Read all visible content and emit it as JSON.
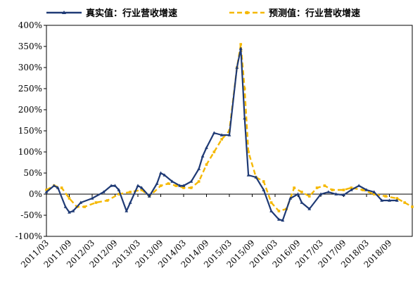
{
  "chart_data": {
    "type": "line",
    "title": "",
    "xlabel": "",
    "ylabel": "",
    "ylim": [
      -100,
      400
    ],
    "y_unit": "%",
    "yticks": [
      -100,
      -50,
      0,
      50,
      100,
      150,
      200,
      250,
      300,
      350,
      400
    ],
    "ytick_labels": [
      "-100%",
      "-50%",
      "0%",
      "50%",
      "100%",
      "150%",
      "200%",
      "250%",
      "300%",
      "350%",
      "400%"
    ],
    "x_start": "2011/03",
    "x_end": "2019/03",
    "xtick_labels": [
      "2011/03",
      "2011/09",
      "2012/03",
      "2012/09",
      "2013/03",
      "2013/09",
      "2014/03",
      "2014/09",
      "2015/03",
      "2015/09",
      "2016/03",
      "2016/09",
      "2017/03",
      "2017/09",
      "2018/03",
      "2018/09"
    ],
    "legend_position": "top",
    "grid": false,
    "series": [
      {
        "name": "真实值：行业营收增速",
        "color": "#1f3a75",
        "style": "solid-marker",
        "points": [
          [
            "2011/03",
            5
          ],
          [
            "2011/05",
            20
          ],
          [
            "2011/06",
            15
          ],
          [
            "2011/08",
            -30
          ],
          [
            "2011/09",
            -43
          ],
          [
            "2011/10",
            -40
          ],
          [
            "2011/12",
            -20
          ],
          [
            "2012/03",
            -10
          ],
          [
            "2012/06",
            5
          ],
          [
            "2012/08",
            20
          ],
          [
            "2012/09",
            20
          ],
          [
            "2012/10",
            10
          ],
          [
            "2012/12",
            -40
          ],
          [
            "2013/01",
            -20
          ],
          [
            "2013/03",
            20
          ],
          [
            "2013/04",
            15
          ],
          [
            "2013/06",
            -5
          ],
          [
            "2013/08",
            25
          ],
          [
            "2013/09",
            50
          ],
          [
            "2013/10",
            45
          ],
          [
            "2013/12",
            30
          ],
          [
            "2014/02",
            20
          ],
          [
            "2014/03",
            20
          ],
          [
            "2014/05",
            30
          ],
          [
            "2014/07",
            60
          ],
          [
            "2014/08",
            90
          ],
          [
            "2014/09",
            110
          ],
          [
            "2014/11",
            145
          ],
          [
            "2015/01",
            140
          ],
          [
            "2015/03",
            140
          ],
          [
            "2015/05",
            300
          ],
          [
            "2015/06",
            345
          ],
          [
            "2015/07",
            180
          ],
          [
            "2015/08",
            45
          ],
          [
            "2015/10",
            40
          ],
          [
            "2015/12",
            10
          ],
          [
            "2016/02",
            -40
          ],
          [
            "2016/04",
            -60
          ],
          [
            "2016/05",
            -62
          ],
          [
            "2016/07",
            -10
          ],
          [
            "2016/09",
            0
          ],
          [
            "2016/10",
            -20
          ],
          [
            "2016/12",
            -35
          ],
          [
            "2017/03",
            0
          ],
          [
            "2017/05",
            5
          ],
          [
            "2017/07",
            0
          ],
          [
            "2017/09",
            -2
          ],
          [
            "2017/11",
            10
          ],
          [
            "2018/01",
            20
          ],
          [
            "2018/03",
            10
          ],
          [
            "2018/05",
            5
          ],
          [
            "2018/07",
            -15
          ],
          [
            "2018/09",
            -15
          ],
          [
            "2018/11",
            -15
          ]
        ]
      },
      {
        "name": "预测值：行业营收增速",
        "color": "#f5b800",
        "style": "dashed-marker",
        "points": [
          [
            "2011/03",
            10
          ],
          [
            "2011/05",
            20
          ],
          [
            "2011/07",
            15
          ],
          [
            "2011/09",
            -10
          ],
          [
            "2011/11",
            -30
          ],
          [
            "2012/01",
            -30
          ],
          [
            "2012/04",
            -20
          ],
          [
            "2012/07",
            -15
          ],
          [
            "2012/10",
            0
          ],
          [
            "2013/01",
            5
          ],
          [
            "2013/04",
            10
          ],
          [
            "2013/06",
            -5
          ],
          [
            "2013/09",
            20
          ],
          [
            "2013/11",
            25
          ],
          [
            "2014/01",
            20
          ],
          [
            "2014/03",
            15
          ],
          [
            "2014/05",
            15
          ],
          [
            "2014/07",
            30
          ],
          [
            "2014/09",
            70
          ],
          [
            "2014/11",
            100
          ],
          [
            "2015/01",
            130
          ],
          [
            "2015/03",
            150
          ],
          [
            "2015/05",
            300
          ],
          [
            "2015/06",
            355
          ],
          [
            "2015/07",
            250
          ],
          [
            "2015/08",
            100
          ],
          [
            "2015/10",
            40
          ],
          [
            "2015/12",
            30
          ],
          [
            "2016/02",
            -20
          ],
          [
            "2016/04",
            -40
          ],
          [
            "2016/06",
            -35
          ],
          [
            "2016/08",
            15
          ],
          [
            "2016/10",
            5
          ],
          [
            "2016/12",
            -5
          ],
          [
            "2017/02",
            15
          ],
          [
            "2017/04",
            20
          ],
          [
            "2017/06",
            10
          ],
          [
            "2017/09",
            10
          ],
          [
            "2017/11",
            15
          ],
          [
            "2018/02",
            10
          ],
          [
            "2018/05",
            0
          ],
          [
            "2018/08",
            -5
          ],
          [
            "2018/11",
            -10
          ],
          [
            "2019/01",
            -20
          ],
          [
            "2019/03",
            -30
          ]
        ]
      }
    ]
  }
}
